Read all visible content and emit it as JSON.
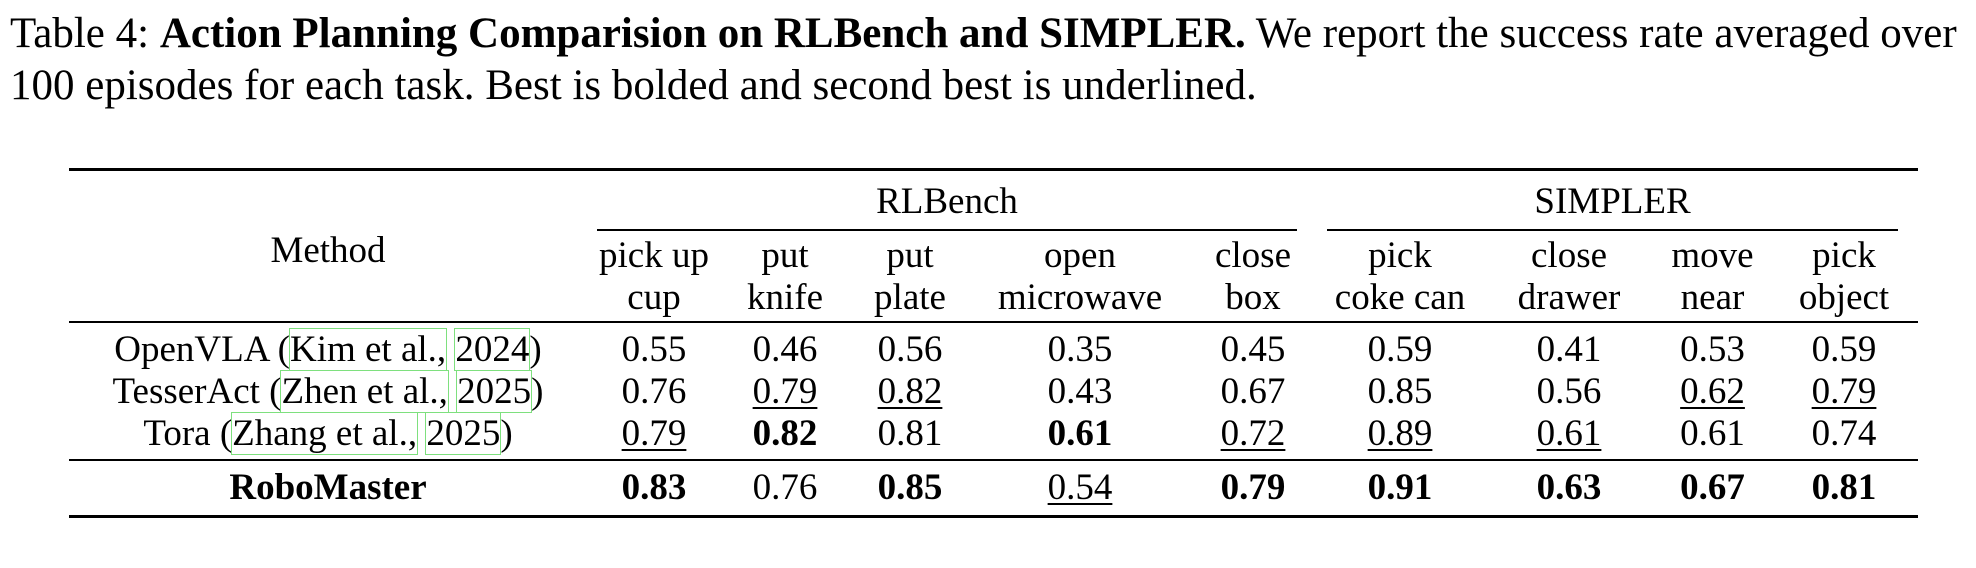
{
  "caption": {
    "label": "Table 4:",
    "title": "Action Planning Comparision on RLBench and SIMPLER.",
    "text": "We report the success rate averaged over 100 episodes for each task. Best is bolded and second best is underlined."
  },
  "table": {
    "method_header": "Method",
    "groups": [
      {
        "name": "RLBench",
        "columns": [
          [
            "pick up",
            "cup"
          ],
          [
            "put",
            "knife"
          ],
          [
            "put",
            "plate"
          ],
          [
            "open",
            "microwave"
          ],
          [
            "close",
            "box"
          ]
        ]
      },
      {
        "name": "SIMPLER",
        "columns": [
          [
            "pick",
            "coke can"
          ],
          [
            "close",
            "drawer"
          ],
          [
            "move",
            "near"
          ],
          [
            "pick",
            "object"
          ]
        ]
      }
    ],
    "rows": [
      {
        "method": {
          "name": "OpenVLA",
          "cite": [
            "Kim et al.,",
            "2024"
          ]
        },
        "values": [
          "0.55",
          "0.46",
          "0.56",
          "0.35",
          "0.45",
          "0.59",
          "0.41",
          "0.53",
          "0.59"
        ],
        "emphasis": [
          null,
          null,
          null,
          null,
          null,
          null,
          null,
          null,
          null
        ]
      },
      {
        "method": {
          "name": "TesserAct",
          "cite": [
            "Zhen et al.,",
            "2025"
          ]
        },
        "values": [
          "0.76",
          "0.79",
          "0.82",
          "0.43",
          "0.67",
          "0.85",
          "0.56",
          "0.62",
          "0.79"
        ],
        "emphasis": [
          null,
          "underline",
          "underline",
          null,
          null,
          null,
          null,
          "underline",
          "underline"
        ]
      },
      {
        "method": {
          "name": "Tora",
          "cite": [
            "Zhang et al.,",
            "2025"
          ]
        },
        "values": [
          "0.79",
          "0.82",
          "0.81",
          "0.61",
          "0.72",
          "0.89",
          "0.61",
          "0.61",
          "0.74"
        ],
        "emphasis": [
          "underline",
          "bold",
          null,
          "bold",
          "underline",
          "underline",
          "underline",
          null,
          null
        ]
      },
      {
        "method": {
          "name": "RoboMaster",
          "bold": true
        },
        "values": [
          "0.83",
          "0.76",
          "0.85",
          "0.54",
          "0.79",
          "0.91",
          "0.63",
          "0.67",
          "0.81"
        ],
        "emphasis": [
          "bold",
          null,
          "bold",
          "underline",
          "bold",
          "bold",
          "bold",
          "bold",
          "bold"
        ]
      }
    ]
  }
}
